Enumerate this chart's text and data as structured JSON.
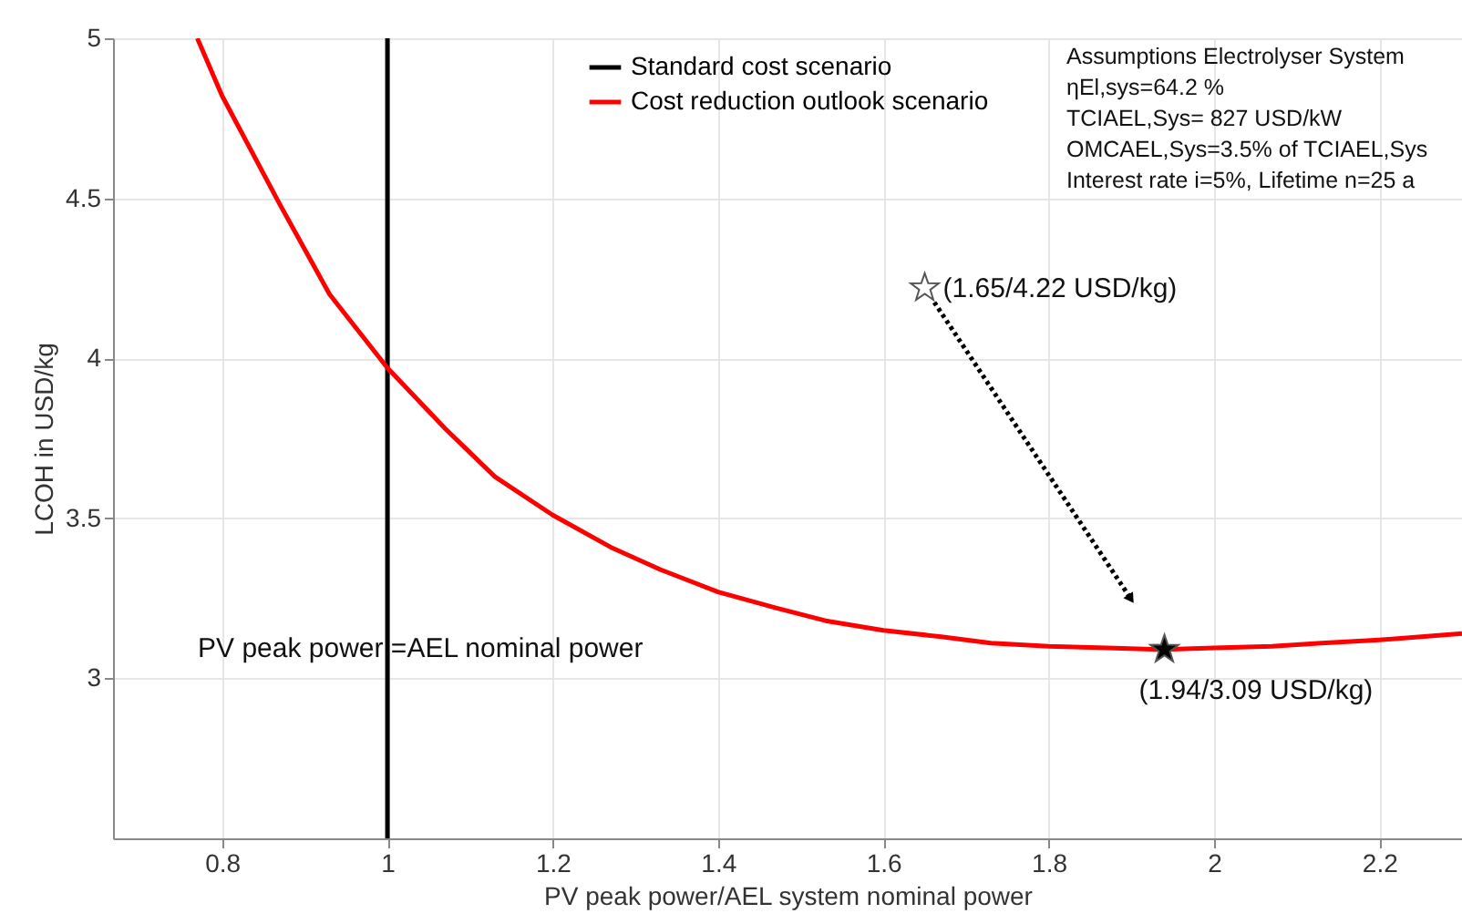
{
  "chart_data": {
    "type": "line",
    "xlabel": "PV peak power/AEL system nominal power",
    "ylabel": "LCOH in USD/kg",
    "xlim": [
      0.668,
      2.3
    ],
    "xticks": [
      0.8,
      1,
      1.2,
      1.4,
      1.6,
      1.8,
      2,
      2.2
    ],
    "ylim": [
      2.5,
      5
    ],
    "yticks": [
      3,
      3.5,
      4,
      4.5,
      5
    ],
    "grid": true,
    "legend": "top",
    "series": [
      {
        "name": "Standard cost scenario",
        "color": "#000000",
        "type": "line",
        "line_style": "solid",
        "x": [
          1,
          1
        ],
        "values": [
          2.5,
          5
        ]
      },
      {
        "name": "Cost reduction outlook scenario",
        "color": "#ff0000",
        "type": "line",
        "line_style": "solid",
        "x": [
          0.77,
          0.8,
          0.87,
          0.93,
          1.0,
          1.07,
          1.13,
          1.2,
          1.27,
          1.33,
          1.4,
          1.47,
          1.53,
          1.6,
          1.67,
          1.73,
          1.8,
          1.87,
          1.94,
          2.0,
          2.07,
          2.13,
          2.2,
          2.3
        ],
        "values": [
          5.0,
          4.82,
          4.48,
          4.2,
          3.97,
          3.78,
          3.63,
          3.51,
          3.41,
          3.34,
          3.27,
          3.22,
          3.18,
          3.15,
          3.13,
          3.11,
          3.1,
          3.095,
          3.09,
          3.095,
          3.1,
          3.11,
          3.12,
          3.14
        ]
      },
      {
        "color": "#ffffff",
        "type": "scatter",
        "marker": "star",
        "x": [
          1.65
        ],
        "values": [
          4.22
        ]
      },
      {
        "color": "#000000",
        "type": "scatter",
        "marker": "star",
        "x": [
          1.94
        ],
        "values": [
          3.09
        ]
      }
    ],
    "annotations": [
      {
        "text": "(1.65/4.22 USD/kg)",
        "x": 1.65,
        "y": 4.22
      },
      {
        "text": "(1.94/3.09 USD/kg)",
        "x": 1.94,
        "y": 3.09
      },
      {
        "text": "PV peak power =AEL nominal power",
        "x": 1,
        "y": 3.05
      },
      "Assumptions Electrolyser System",
      "ηEl,sys=64.2 %",
      "TCIAEL,Sys= 827 USD/kW",
      "OMCAEL,Sys=3.5% of TCIAEL,Sys",
      "Interest rate i=5%, Lifetime n=25 a"
    ]
  }
}
